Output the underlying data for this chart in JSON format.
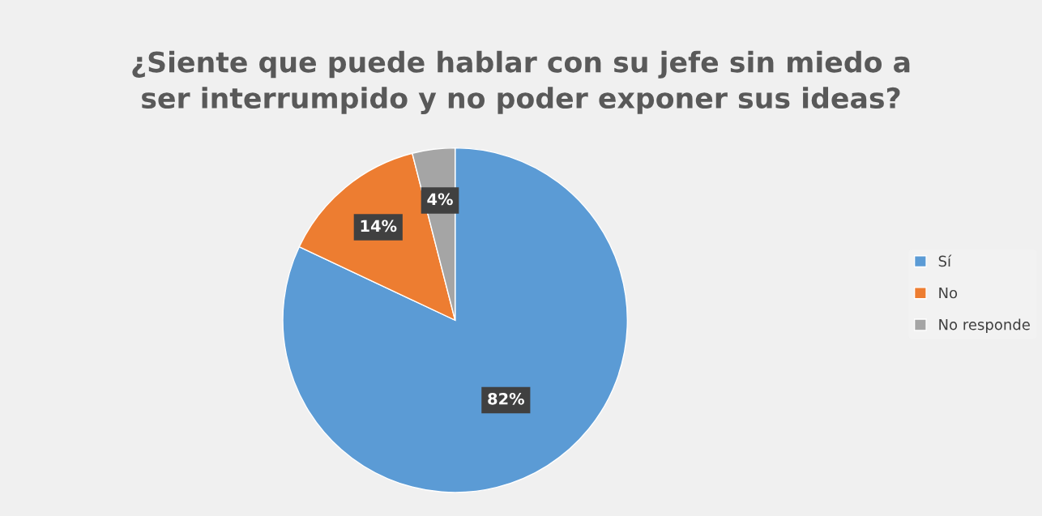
{
  "chart_data": {
    "type": "pie",
    "title": "¿Siente que puede hablar con su jefe sin miedo a\nser interrumpido y no poder exponer sus ideas?",
    "categories": [
      "Sí",
      "No",
      "No responde"
    ],
    "values": [
      82,
      14,
      4
    ],
    "colors": [
      "#5b9bd5",
      "#ed7d31",
      "#a5a5a5"
    ],
    "value_labels": [
      "82%",
      "14%",
      "4%"
    ],
    "legend": "right"
  }
}
